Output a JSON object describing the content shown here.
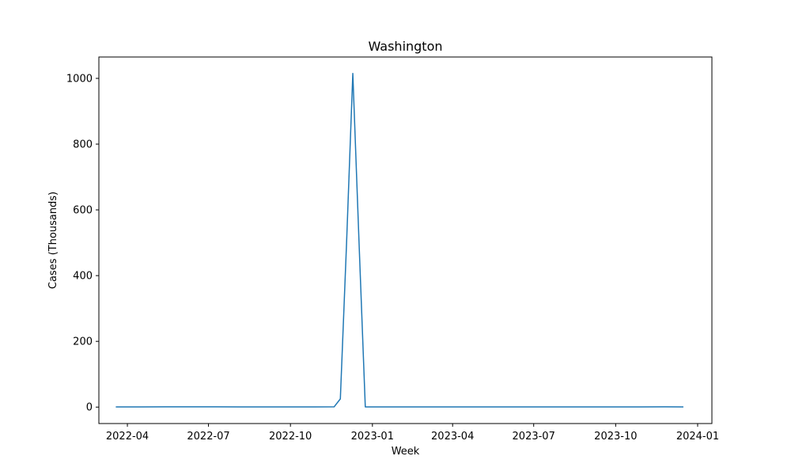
{
  "chart_data": {
    "type": "line",
    "title": "Washington",
    "xlabel": "Week",
    "ylabel": "Cases (Thousands)",
    "grid": false,
    "legend": "none",
    "x_axis_type": "date",
    "xlim": [
      "2022-02-28",
      "2024-01-17"
    ],
    "ylim": [
      -50,
      1065
    ],
    "x_ticks": [
      "2022-04-01",
      "2022-07-01",
      "2022-10-01",
      "2023-01-01",
      "2023-04-01",
      "2023-07-01",
      "2023-10-01",
      "2024-01-01"
    ],
    "x_tick_labels": [
      "2022-04",
      "2022-07",
      "2022-10",
      "2023-01",
      "2023-04",
      "2023-07",
      "2023-10",
      "2024-01"
    ],
    "y_ticks": [
      0,
      200,
      400,
      600,
      800,
      1000
    ],
    "y_tick_labels": [
      "0",
      "200",
      "400",
      "600",
      "800",
      "1000"
    ],
    "line_color": "#1f77b4",
    "series": [
      {
        "x": [
          "2022-03-19",
          "2022-04-16",
          "2022-05-14",
          "2022-06-11",
          "2022-07-09",
          "2022-08-06",
          "2022-09-03",
          "2022-10-01",
          "2022-10-29",
          "2022-11-19",
          "2022-11-26",
          "2022-12-03",
          "2022-12-10",
          "2022-12-17",
          "2022-12-24",
          "2023-01-21",
          "2023-03-18",
          "2023-05-13",
          "2023-07-08",
          "2023-09-02",
          "2023-10-28",
          "2023-11-25",
          "2023-12-16"
        ],
        "values": [
          0.5,
          0.6,
          1.0,
          0.8,
          1.0,
          0.7,
          0.6,
          0.5,
          0.5,
          0.8,
          25,
          500,
          1015,
          500,
          0.7,
          0.5,
          0.5,
          0.5,
          0.5,
          0.5,
          0.5,
          1.0,
          0.6
        ]
      }
    ]
  }
}
